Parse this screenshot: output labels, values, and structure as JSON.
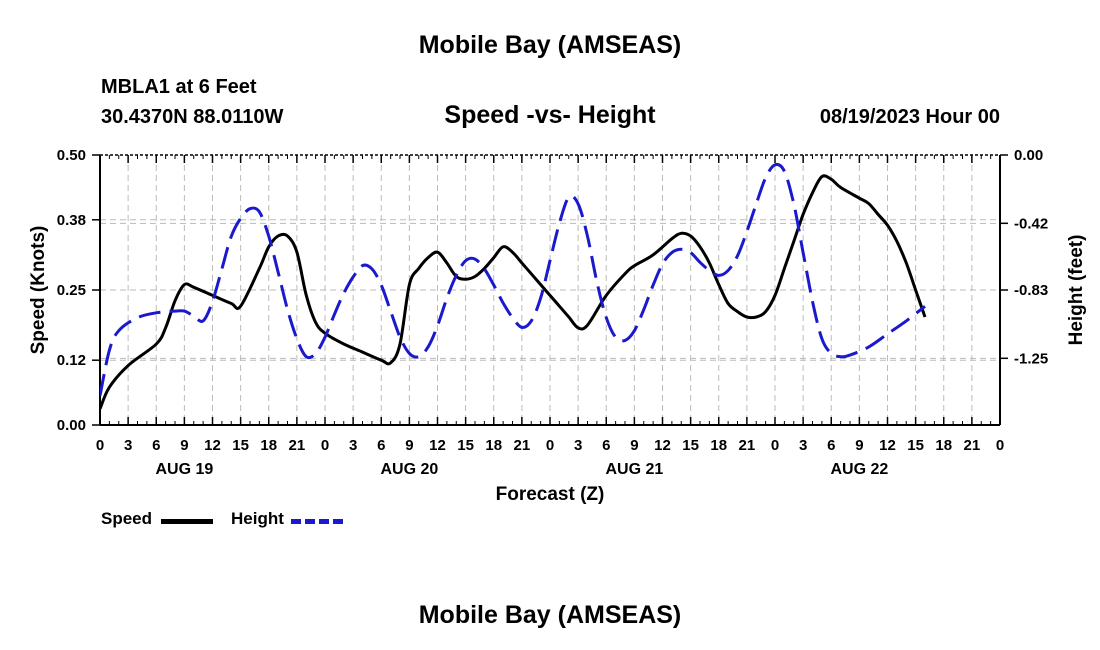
{
  "header": {
    "title": "Mobile Bay (AMSEAS)",
    "station": "MBLA1 at 6 Feet",
    "coords": "30.4370N  88.0110W",
    "subtitle": "Speed -vs- Height",
    "datetime": "08/19/2023 Hour 00"
  },
  "footer": {
    "title": "Mobile Bay (AMSEAS)"
  },
  "colors": {
    "speed": "#000000",
    "height": "#1a1acc",
    "grid": "#bbbbbb"
  },
  "chart_data": {
    "type": "line",
    "title": "Speed -vs- Height",
    "xlabel": "Forecast (Z)",
    "ylabel_left": "Speed (Knots)",
    "ylabel_right": "Height (feet)",
    "x_range_hours": [
      0,
      96
    ],
    "x_tick_labels": [
      "0",
      "3",
      "6",
      "9",
      "12",
      "15",
      "18",
      "21",
      "0",
      "3",
      "6",
      "9",
      "12",
      "15",
      "18",
      "21",
      "0",
      "3",
      "6",
      "9",
      "12",
      "15",
      "18",
      "21",
      "0",
      "3",
      "6",
      "9",
      "12",
      "15",
      "18",
      "21",
      "0"
    ],
    "day_labels": [
      {
        "label": "AUG 19",
        "hour": 9
      },
      {
        "label": "AUG 20",
        "hour": 33
      },
      {
        "label": "AUG 21",
        "hour": 57
      },
      {
        "label": "AUG 22",
        "hour": 81
      }
    ],
    "ylim_left": [
      0,
      0.5
    ],
    "yticks_left": [
      0.0,
      0.12,
      0.25,
      0.38,
      0.5
    ],
    "ytick_labels_left": [
      "0.00",
      "0.12",
      "0.25",
      "0.38",
      "0.50"
    ],
    "ylim_right": [
      -1.66,
      0.0
    ],
    "yticks_right": [
      0.0,
      -0.42,
      -0.83,
      -1.25
    ],
    "ytick_labels_right": [
      "0.00",
      "-0.42",
      "-0.83",
      "-1.25"
    ],
    "grid": true,
    "legend_placement": "bottom-left",
    "series": [
      {
        "name": "Speed",
        "axis": "left",
        "style": "solid",
        "points": [
          [
            0,
            0.03
          ],
          [
            1,
            0.07
          ],
          [
            3,
            0.11
          ],
          [
            6,
            0.15
          ],
          [
            7,
            0.18
          ],
          [
            8,
            0.23
          ],
          [
            9,
            0.26
          ],
          [
            10,
            0.255
          ],
          [
            12,
            0.24
          ],
          [
            14,
            0.225
          ],
          [
            15,
            0.22
          ],
          [
            17,
            0.29
          ],
          [
            18,
            0.33
          ],
          [
            19,
            0.35
          ],
          [
            20,
            0.35
          ],
          [
            21,
            0.32
          ],
          [
            22,
            0.24
          ],
          [
            23,
            0.19
          ],
          [
            24,
            0.17
          ],
          [
            26,
            0.15
          ],
          [
            28,
            0.135
          ],
          [
            30,
            0.12
          ],
          [
            31,
            0.115
          ],
          [
            32,
            0.15
          ],
          [
            33,
            0.26
          ],
          [
            34,
            0.29
          ],
          [
            35,
            0.31
          ],
          [
            36,
            0.32
          ],
          [
            37,
            0.3
          ],
          [
            38,
            0.275
          ],
          [
            39,
            0.27
          ],
          [
            40,
            0.275
          ],
          [
            41,
            0.29
          ],
          [
            42,
            0.31
          ],
          [
            43,
            0.33
          ],
          [
            44,
            0.32
          ],
          [
            45,
            0.3
          ],
          [
            46,
            0.28
          ],
          [
            48,
            0.24
          ],
          [
            49,
            0.22
          ],
          [
            50,
            0.2
          ],
          [
            51,
            0.18
          ],
          [
            52,
            0.185
          ],
          [
            54,
            0.24
          ],
          [
            56,
            0.28
          ],
          [
            57,
            0.295
          ],
          [
            59,
            0.315
          ],
          [
            61,
            0.345
          ],
          [
            62,
            0.355
          ],
          [
            63,
            0.35
          ],
          [
            64,
            0.33
          ],
          [
            65,
            0.3
          ],
          [
            66,
            0.26
          ],
          [
            67,
            0.225
          ],
          [
            68,
            0.21
          ],
          [
            69,
            0.2
          ],
          [
            70,
            0.2
          ],
          [
            71,
            0.21
          ],
          [
            72,
            0.24
          ],
          [
            73,
            0.29
          ],
          [
            74,
            0.34
          ],
          [
            75,
            0.39
          ],
          [
            76,
            0.43
          ],
          [
            77,
            0.46
          ],
          [
            78,
            0.455
          ],
          [
            79,
            0.44
          ],
          [
            81,
            0.42
          ],
          [
            82,
            0.41
          ],
          [
            83,
            0.39
          ],
          [
            84,
            0.37
          ],
          [
            85,
            0.34
          ],
          [
            86,
            0.3
          ],
          [
            87,
            0.25
          ],
          [
            88,
            0.2
          ]
        ]
      },
      {
        "name": "Height",
        "axis": "right",
        "style": "dashed",
        "points": [
          [
            0,
            -1.48
          ],
          [
            1,
            -1.2
          ],
          [
            2,
            -1.08
          ],
          [
            4,
            -1.0
          ],
          [
            6,
            -0.97
          ],
          [
            8,
            -0.96
          ],
          [
            9,
            -0.96
          ],
          [
            10,
            -0.99
          ],
          [
            11,
            -1.02
          ],
          [
            12,
            -0.9
          ],
          [
            13,
            -0.7
          ],
          [
            14,
            -0.5
          ],
          [
            15,
            -0.39
          ],
          [
            16,
            -0.33
          ],
          [
            17,
            -0.35
          ],
          [
            18,
            -0.5
          ],
          [
            19,
            -0.72
          ],
          [
            20,
            -0.95
          ],
          [
            21,
            -1.13
          ],
          [
            22,
            -1.24
          ],
          [
            23,
            -1.22
          ],
          [
            24,
            -1.12
          ],
          [
            25,
            -0.98
          ],
          [
            26,
            -0.85
          ],
          [
            27,
            -0.75
          ],
          [
            28,
            -0.68
          ],
          [
            29,
            -0.7
          ],
          [
            30,
            -0.8
          ],
          [
            31,
            -0.96
          ],
          [
            32,
            -1.12
          ],
          [
            33,
            -1.22
          ],
          [
            34,
            -1.24
          ],
          [
            35,
            -1.18
          ],
          [
            36,
            -1.05
          ],
          [
            37,
            -0.88
          ],
          [
            38,
            -0.74
          ],
          [
            39,
            -0.65
          ],
          [
            40,
            -0.64
          ],
          [
            41,
            -0.7
          ],
          [
            42,
            -0.8
          ],
          [
            43,
            -0.91
          ],
          [
            44,
            -1.0
          ],
          [
            45,
            -1.06
          ],
          [
            46,
            -1.02
          ],
          [
            47,
            -0.88
          ],
          [
            48,
            -0.65
          ],
          [
            49,
            -0.42
          ],
          [
            50,
            -0.26
          ],
          [
            51,
            -0.3
          ],
          [
            52,
            -0.5
          ],
          [
            53,
            -0.78
          ],
          [
            54,
            -1.0
          ],
          [
            55,
            -1.12
          ],
          [
            56,
            -1.14
          ],
          [
            57,
            -1.08
          ],
          [
            58,
            -0.95
          ],
          [
            59,
            -0.8
          ],
          [
            60,
            -0.67
          ],
          [
            61,
            -0.6
          ],
          [
            62,
            -0.58
          ],
          [
            63,
            -0.6
          ],
          [
            64,
            -0.66
          ],
          [
            65,
            -0.71
          ],
          [
            66,
            -0.74
          ],
          [
            67,
            -0.71
          ],
          [
            68,
            -0.62
          ],
          [
            69,
            -0.47
          ],
          [
            70,
            -0.3
          ],
          [
            71,
            -0.14
          ],
          [
            72,
            -0.06
          ],
          [
            73,
            -0.1
          ],
          [
            74,
            -0.3
          ],
          [
            75,
            -0.6
          ],
          [
            76,
            -0.9
          ],
          [
            77,
            -1.13
          ],
          [
            78,
            -1.22
          ],
          [
            79,
            -1.24
          ],
          [
            80,
            -1.23
          ],
          [
            82,
            -1.18
          ],
          [
            84,
            -1.1
          ],
          [
            86,
            -1.02
          ],
          [
            88,
            -0.93
          ]
        ]
      }
    ]
  },
  "legend": {
    "speed_label": "Speed",
    "height_label": "Height"
  }
}
